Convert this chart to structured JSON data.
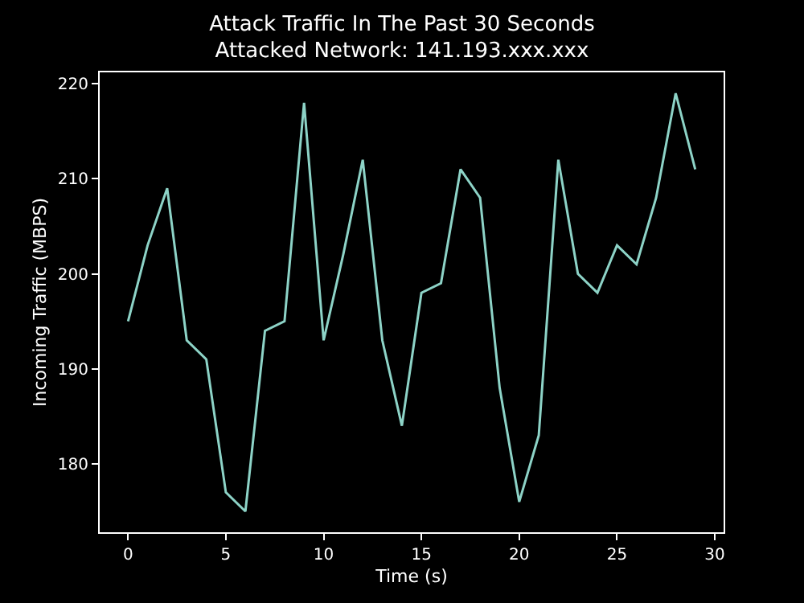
{
  "chart_data": {
    "type": "line",
    "title": "Attack Traffic In The Past 30 Seconds",
    "subtitle": "Attacked Network: 141.193.xxx.xxx",
    "xlabel": "Time (s)",
    "ylabel": "Incoming Traffic (MBPS)",
    "x": [
      0,
      1,
      2,
      3,
      4,
      5,
      6,
      7,
      8,
      9,
      10,
      11,
      12,
      13,
      14,
      15,
      16,
      17,
      18,
      19,
      20,
      21,
      22,
      23,
      24,
      25,
      26,
      27,
      28,
      29
    ],
    "series": [
      {
        "color": "#8dd3c7",
        "values": [
          195,
          203,
          209,
          193,
          191,
          177,
          175,
          194,
          195,
          218,
          193,
          202,
          212,
          193,
          184,
          198,
          199,
          211,
          208,
          188,
          176,
          183,
          212,
          200,
          198,
          203,
          201,
          208,
          219,
          211
        ]
      }
    ],
    "xlim": [
      -1.45,
      30.45
    ],
    "xticks": [
      0,
      5,
      10,
      15,
      20,
      25,
      30
    ],
    "ylim": [
      172.8,
      221.2
    ],
    "yticks": [
      180,
      190,
      200,
      210,
      220
    ],
    "grid": false,
    "legend": false,
    "marker": "none",
    "line_style": "solid"
  }
}
